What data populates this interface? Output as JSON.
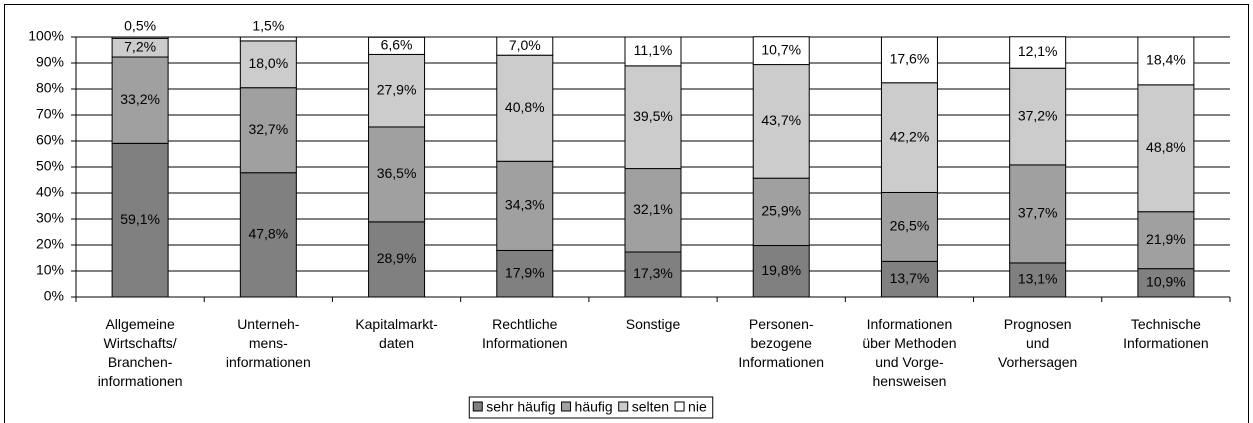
{
  "chart_data": {
    "type": "stacked_bar",
    "categories": [
      "Allgemeine\nWirtschafts/\nBranchen-\ninformationen",
      "Unterneh-\nmens-\ninformationen",
      "Kapitalmarkt-\ndaten",
      "Rechtliche\nInformationen",
      "Sonstige",
      "Personen-\nbezogene\nInformationen",
      "Informationen\nüber Methoden\nund Vorge-\nhensweisen",
      "Prognosen\nund\nVorhersagen",
      "Technische\nInformationen"
    ],
    "series": [
      {
        "name": "sehr häufig",
        "color": "#808080",
        "values": [
          59.1,
          47.8,
          28.9,
          17.9,
          17.3,
          19.8,
          13.7,
          13.1,
          10.9
        ],
        "value_labels": [
          "59,1%",
          "47,8%",
          "28,9%",
          "17,9%",
          "17,3%",
          "19,8%",
          "13,7%",
          "13,1%",
          "10,9%"
        ]
      },
      {
        "name": "häufig",
        "color": "#a0a0a0",
        "values": [
          33.2,
          32.7,
          36.5,
          34.3,
          32.1,
          25.9,
          26.5,
          37.7,
          21.9
        ],
        "value_labels": [
          "33,2%",
          "32,7%",
          "36,5%",
          "34,3%",
          "32,1%",
          "25,9%",
          "26,5%",
          "37,7%",
          "21,9%"
        ]
      },
      {
        "name": "selten",
        "color": "#cccccc",
        "values": [
          7.2,
          18.0,
          27.9,
          40.8,
          39.5,
          43.7,
          42.2,
          37.2,
          48.8
        ],
        "value_labels": [
          "7,2%",
          "18,0%",
          "27,9%",
          "40,8%",
          "39,5%",
          "43,7%",
          "42,2%",
          "37,2%",
          "48,8%"
        ]
      },
      {
        "name": "nie",
        "color": "#ffffff",
        "values": [
          0.5,
          1.5,
          6.6,
          7.0,
          11.1,
          10.7,
          17.6,
          12.1,
          18.4
        ],
        "value_labels": [
          "0,5%",
          "1,5%",
          "6,6%",
          "7,0%",
          "11,1%",
          "10,7%",
          "17,6%",
          "12,1%",
          "18,4%"
        ]
      }
    ],
    "ylim": [
      0,
      100
    ],
    "yticks": [
      {
        "value": 0,
        "label": "0%"
      },
      {
        "value": 10,
        "label": "10%"
      },
      {
        "value": 20,
        "label": "20%"
      },
      {
        "value": 30,
        "label": "30%"
      },
      {
        "value": 40,
        "label": "40%"
      },
      {
        "value": 50,
        "label": "50%"
      },
      {
        "value": 60,
        "label": "60%"
      },
      {
        "value": 70,
        "label": "70%"
      },
      {
        "value": 80,
        "label": "80%"
      },
      {
        "value": 90,
        "label": "90%"
      },
      {
        "value": 100,
        "label": "100%"
      }
    ],
    "grid": true,
    "legend": "bottom"
  }
}
